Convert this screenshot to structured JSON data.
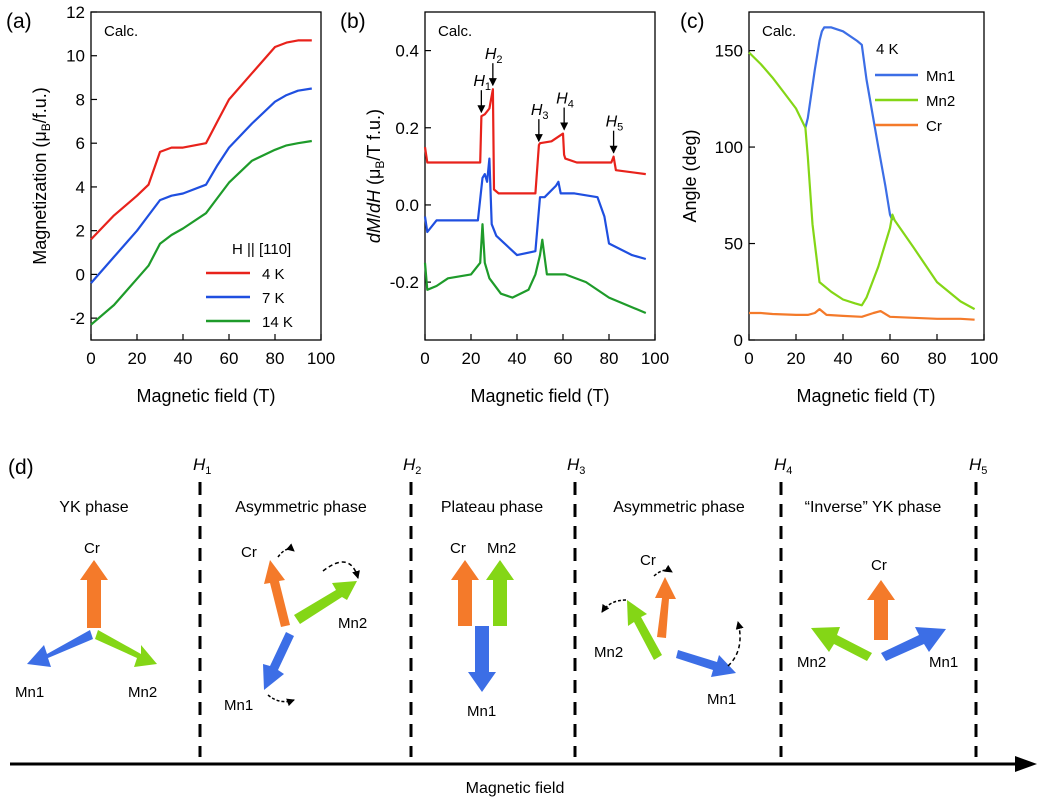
{
  "colors": {
    "red": "#e8221b",
    "blue": "#1f4fe0",
    "green": "#1e9b2a",
    "mn1": "#3c6ee6",
    "mn2": "#84d616",
    "cr": "#f47a2a",
    "phasebar": "#000000"
  },
  "chart_data": [
    {
      "panel": "(a)",
      "type": "line",
      "corner_text": "Calc.",
      "xlabel": "Magnetic field (T)",
      "ylabel": "Magnetization (μB/f.u.)",
      "xlim": [
        0,
        100
      ],
      "ylim": [
        -3,
        12
      ],
      "xticks": [
        "0",
        "20",
        "40",
        "60",
        "80",
        "100"
      ],
      "yticks": [
        "-2",
        "0",
        "2",
        "4",
        "6",
        "8",
        "10",
        "12"
      ],
      "legend_title": "H || [110]",
      "legend": "bottom-right",
      "series": [
        {
          "name": "4 K",
          "color": "#e8221b",
          "x": [
            0,
            10,
            20,
            25,
            30,
            35,
            40,
            50,
            55,
            60,
            70,
            80,
            85,
            90,
            96
          ],
          "y": [
            1.6,
            2.7,
            3.6,
            4.1,
            5.6,
            5.8,
            5.8,
            6.0,
            7.0,
            8.0,
            9.2,
            10.4,
            10.6,
            10.7,
            10.7
          ]
        },
        {
          "name": "7 K",
          "color": "#1f4fe0",
          "x": [
            0,
            10,
            20,
            25,
            30,
            35,
            40,
            50,
            55,
            60,
            70,
            80,
            85,
            90,
            96
          ],
          "y": [
            -0.4,
            0.8,
            2.0,
            2.7,
            3.4,
            3.6,
            3.7,
            4.1,
            5.0,
            5.8,
            6.9,
            7.9,
            8.2,
            8.4,
            8.5
          ]
        },
        {
          "name": "14 K",
          "color": "#1e9b2a",
          "x": [
            0,
            10,
            20,
            25,
            30,
            35,
            40,
            50,
            55,
            60,
            70,
            80,
            85,
            90,
            96
          ],
          "y": [
            -2.3,
            -1.4,
            -0.2,
            0.4,
            1.4,
            1.8,
            2.1,
            2.8,
            3.5,
            4.2,
            5.2,
            5.7,
            5.9,
            6.0,
            6.1
          ]
        }
      ]
    },
    {
      "panel": "(b)",
      "type": "line",
      "corner_text": "Calc.",
      "xlabel": "Magnetic field (T)",
      "ylabel": "dM/dH (μB/T f.u.)",
      "xlim": [
        0,
        100
      ],
      "ylim": [
        -0.35,
        0.5
      ],
      "xticks": [
        "0",
        "20",
        "40",
        "60",
        "80",
        "100"
      ],
      "yticks": [
        "-0.2",
        "0.0",
        "0.2",
        "0.4"
      ],
      "annotations": [
        {
          "text": "H1",
          "x": 24.5,
          "y": 0.23
        },
        {
          "text": "H2",
          "x": 29.5,
          "y": 0.3
        },
        {
          "text": "H3",
          "x": 49.5,
          "y": 0.155
        },
        {
          "text": "H4",
          "x": 60.5,
          "y": 0.185
        },
        {
          "text": "H5",
          "x": 82,
          "y": 0.125
        }
      ],
      "series": [
        {
          "name": "4 K",
          "color": "#e8221b",
          "x": [
            0,
            1,
            5,
            24,
            24.5,
            26,
            28,
            29.5,
            30,
            32,
            40,
            48,
            49.5,
            50,
            55,
            60,
            60.5,
            61,
            66,
            81,
            82,
            83,
            96
          ],
          "y": [
            0.15,
            0.11,
            0.11,
            0.11,
            0.23,
            0.235,
            0.25,
            0.3,
            0.04,
            0.03,
            0.03,
            0.03,
            0.155,
            0.16,
            0.165,
            0.185,
            0.13,
            0.12,
            0.11,
            0.11,
            0.125,
            0.09,
            0.08
          ]
        },
        {
          "name": "7 K",
          "color": "#1f4fe0",
          "x": [
            0,
            1,
            5,
            15,
            23,
            25,
            26,
            27,
            28,
            29,
            31,
            40,
            48,
            49,
            50,
            52,
            57,
            58,
            59,
            65,
            75,
            78,
            80,
            90,
            96
          ],
          "y": [
            -0.03,
            -0.07,
            -0.04,
            -0.04,
            -0.04,
            0.07,
            0.08,
            0.06,
            0.12,
            -0.05,
            -0.08,
            -0.13,
            -0.12,
            -0.05,
            0.02,
            0.02,
            0.05,
            0.06,
            0.03,
            0.03,
            0.02,
            -0.03,
            -0.1,
            -0.13,
            -0.14
          ]
        },
        {
          "name": "14 K",
          "color": "#1e9b2a",
          "x": [
            0,
            1,
            5,
            10,
            20,
            24,
            25,
            26,
            28,
            33,
            38,
            45,
            48,
            50,
            51,
            53,
            58,
            61,
            70,
            80,
            96
          ],
          "y": [
            -0.15,
            -0.22,
            -0.21,
            -0.19,
            -0.18,
            -0.15,
            -0.05,
            -0.15,
            -0.19,
            -0.23,
            -0.24,
            -0.22,
            -0.18,
            -0.13,
            -0.09,
            -0.18,
            -0.18,
            -0.18,
            -0.2,
            -0.24,
            -0.28
          ]
        }
      ]
    },
    {
      "panel": "(c)",
      "type": "line",
      "corner_text": "Calc.",
      "xlabel": "Magnetic field (T)",
      "ylabel": "Angle (deg)",
      "xlim": [
        0,
        100
      ],
      "ylim": [
        0,
        170
      ],
      "xticks": [
        "0",
        "20",
        "40",
        "60",
        "80",
        "100"
      ],
      "yticks": [
        "0",
        "50",
        "100",
        "150"
      ],
      "legend_title": "4 K",
      "legend": "top-right",
      "series": [
        {
          "name": "Mn1",
          "color": "#3c6ee6",
          "x": [
            24,
            25,
            28,
            30,
            31,
            32,
            35,
            40,
            46,
            48,
            50,
            55,
            58,
            60,
            61
          ],
          "y": [
            110,
            115,
            140,
            155,
            160,
            162,
            162,
            160,
            155,
            153,
            135,
            100,
            80,
            65,
            62
          ]
        },
        {
          "name": "Mn2",
          "color": "#84d616",
          "x": [
            0,
            5,
            10,
            15,
            20,
            24,
            25,
            27,
            30,
            35,
            40,
            45,
            48,
            50,
            55,
            58,
            60,
            61,
            62,
            70,
            80,
            90,
            96
          ],
          "y": [
            149,
            143,
            136,
            128,
            120,
            110,
            95,
            60,
            30,
            25,
            21,
            19,
            18,
            22,
            38,
            50,
            58,
            65,
            62,
            48,
            30,
            20,
            16
          ]
        },
        {
          "name": "Cr",
          "color": "#f47a2a",
          "x": [
            0,
            5,
            10,
            20,
            25,
            28,
            30,
            33,
            40,
            48,
            53,
            56,
            60,
            70,
            80,
            90,
            96
          ],
          "y": [
            14,
            14,
            13.5,
            13,
            13,
            14,
            16,
            13,
            12.5,
            12,
            14,
            15,
            12,
            11.5,
            11,
            11,
            10.5
          ]
        }
      ]
    }
  ],
  "diagram": {
    "label": "(d)",
    "axis_label": "Magnetic field",
    "boundaries": [
      "H1",
      "H2",
      "H3",
      "H4",
      "H5"
    ],
    "phases": [
      "YK phase",
      "Asymmetric phase",
      "Plateau phase",
      "Asymmetric phase",
      "“Inverse” YK phase"
    ],
    "spin_labels": {
      "cr": "Cr",
      "mn1": "Mn1",
      "mn2": "Mn2"
    }
  }
}
